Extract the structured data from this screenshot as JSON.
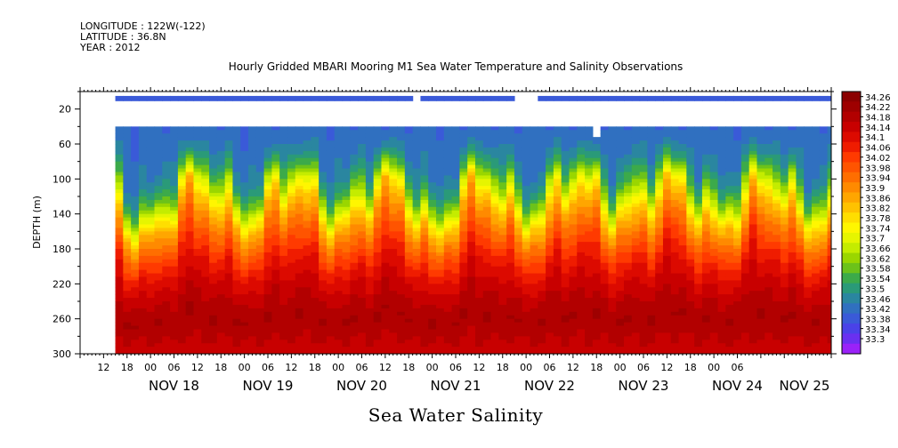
{
  "header": {
    "longitude": "LONGITUDE : 122W(-122)",
    "latitude": "LATITUDE : 36.8N",
    "year": "YEAR : 2012"
  },
  "chart_data": {
    "type": "heatmap",
    "title": "Hourly Gridded MBARI Mooring M1 Sea Water Temperature and Salinity Observations",
    "xlabel": "Sea Water Salinity",
    "ylabel": "DEPTH (m)",
    "x_range_hours": [
      -12,
      180
    ],
    "x_hour_ticks": [
      "12",
      "18",
      "00",
      "06",
      "12",
      "18",
      "00",
      "06",
      "12",
      "18",
      "00",
      "06",
      "12",
      "18",
      "00",
      "06",
      "12",
      "18",
      "00",
      "06",
      "12",
      "18",
      "00",
      "06",
      "12",
      "18",
      "00",
      "06"
    ],
    "x_day_labels": [
      "NOV 18",
      "NOV 19",
      "NOV 20",
      "NOV 21",
      "NOV 22",
      "NOV 23",
      "NOV 24",
      "NOV 25"
    ],
    "y_range": [
      300,
      0
    ],
    "y_ticks": [
      20,
      60,
      100,
      140,
      180,
      220,
      260,
      300
    ],
    "colorbar_levels": [
      "34.26",
      "34.22",
      "34.18",
      "34.14",
      "34.1",
      "34.06",
      "34.02",
      "33.98",
      "33.94",
      "33.9",
      "33.86",
      "33.82",
      "33.78",
      "33.74",
      "33.7",
      "33.66",
      "33.62",
      "33.58",
      "33.54",
      "33.5",
      "33.46",
      "33.42",
      "33.38",
      "33.34",
      "33.3"
    ],
    "colorbar_min": 33.3,
    "colorbar_max": 34.3,
    "data_start_hour": -3,
    "top_sensor_depth_m": [
      5,
      11
    ],
    "top_sensor_gaps_hours": [
      [
        72,
        75
      ],
      [
        99,
        104
      ]
    ],
    "main_data_top_m": 40,
    "main_gap_hours": [
      [
        119,
        121
      ]
    ],
    "main_gap_bottom_m": 50,
    "profile_depth_m": [
      40,
      60,
      80,
      100,
      120,
      140,
      160,
      180,
      200,
      220,
      240,
      260,
      280,
      300
    ],
    "profile_salinity": [
      33.46,
      33.48,
      33.52,
      33.6,
      33.72,
      33.86,
      33.95,
      34.03,
      34.1,
      34.15,
      34.19,
      34.22,
      34.19,
      34.16
    ],
    "surface_salinity": 33.44
  }
}
